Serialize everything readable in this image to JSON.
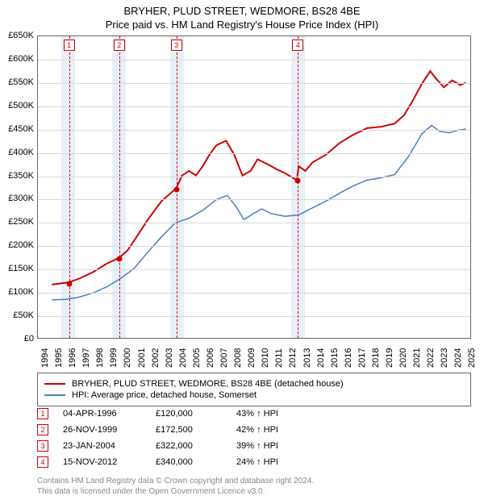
{
  "title": {
    "main": "BRYHER, PLUD STREET, WEDMORE, BS28 4BE",
    "sub": "Price paid vs. HM Land Registry's House Price Index (HPI)"
  },
  "chart": {
    "type": "line",
    "background_color": "#ffffff",
    "grid_color": "#d9d9d9",
    "border_color": "#666666",
    "highlight_band_color": "#e7f0f9",
    "dashed_line_color": "#cc0000",
    "x": {
      "min": 1994,
      "max": 2025.5,
      "ticks": [
        1994,
        1995,
        1996,
        1997,
        1998,
        1999,
        2000,
        2001,
        2002,
        2003,
        2004,
        2005,
        2006,
        2007,
        2008,
        2009,
        2010,
        2011,
        2012,
        2013,
        2014,
        2015,
        2016,
        2017,
        2018,
        2019,
        2020,
        2021,
        2022,
        2023,
        2024,
        2025
      ],
      "label_fontsize": 11
    },
    "y": {
      "min": 0,
      "max": 650000,
      "ticks": [
        0,
        50000,
        100000,
        150000,
        200000,
        250000,
        300000,
        350000,
        400000,
        450000,
        500000,
        550000,
        600000,
        650000
      ],
      "tick_labels": [
        "£0",
        "£50K",
        "£100K",
        "£150K",
        "£200K",
        "£250K",
        "£300K",
        "£350K",
        "£400K",
        "£450K",
        "£500K",
        "£550K",
        "£600K",
        "£650K"
      ],
      "label_fontsize": 11
    },
    "highlight_bands": [
      {
        "from": 1995.7,
        "to": 1996.7
      },
      {
        "from": 1999.4,
        "to": 2000.4
      },
      {
        "from": 2003.6,
        "to": 2004.6
      },
      {
        "from": 2012.4,
        "to": 2013.4
      }
    ],
    "event_markers": [
      {
        "n": "1",
        "x": 1996.26,
        "y": 120000
      },
      {
        "n": "2",
        "x": 1999.9,
        "y": 172500
      },
      {
        "n": "3",
        "x": 2004.06,
        "y": 322000
      },
      {
        "n": "4",
        "x": 2012.87,
        "y": 340000
      }
    ],
    "series": [
      {
        "name": "BRYHER, PLUD STREET, WEDMORE, BS28 4BE (detached house)",
        "color": "#cc0000",
        "line_width": 2,
        "data": [
          [
            1995.0,
            115000
          ],
          [
            1996.26,
            120000
          ],
          [
            1997.0,
            128000
          ],
          [
            1998.0,
            142000
          ],
          [
            1999.0,
            160000
          ],
          [
            1999.9,
            172500
          ],
          [
            2000.5,
            188000
          ],
          [
            2001.0,
            210000
          ],
          [
            2002.0,
            255000
          ],
          [
            2003.0,
            295000
          ],
          [
            2004.06,
            322000
          ],
          [
            2004.5,
            350000
          ],
          [
            2005.0,
            360000
          ],
          [
            2005.5,
            350000
          ],
          [
            2006.0,
            370000
          ],
          [
            2006.5,
            395000
          ],
          [
            2007.0,
            415000
          ],
          [
            2007.7,
            425000
          ],
          [
            2008.3,
            395000
          ],
          [
            2008.9,
            350000
          ],
          [
            2009.5,
            360000
          ],
          [
            2010.0,
            385000
          ],
          [
            2010.7,
            375000
          ],
          [
            2011.3,
            365000
          ],
          [
            2012.0,
            355000
          ],
          [
            2012.87,
            340000
          ],
          [
            2013.0,
            370000
          ],
          [
            2013.5,
            360000
          ],
          [
            2014.0,
            378000
          ],
          [
            2015.0,
            395000
          ],
          [
            2016.0,
            420000
          ],
          [
            2017.0,
            438000
          ],
          [
            2018.0,
            452000
          ],
          [
            2019.0,
            455000
          ],
          [
            2020.0,
            462000
          ],
          [
            2020.7,
            480000
          ],
          [
            2021.3,
            510000
          ],
          [
            2022.0,
            548000
          ],
          [
            2022.6,
            575000
          ],
          [
            2023.0,
            560000
          ],
          [
            2023.6,
            540000
          ],
          [
            2024.2,
            555000
          ],
          [
            2024.8,
            545000
          ],
          [
            2025.2,
            550000
          ]
        ]
      },
      {
        "name": "HPI: Average price, detached house, Somerset",
        "color": "#4a7fc1",
        "line_width": 1.5,
        "data": [
          [
            1995.0,
            82000
          ],
          [
            1996.0,
            83000
          ],
          [
            1997.0,
            88000
          ],
          [
            1998.0,
            97000
          ],
          [
            1999.0,
            110000
          ],
          [
            2000.0,
            128000
          ],
          [
            2001.0,
            150000
          ],
          [
            2002.0,
            185000
          ],
          [
            2003.0,
            218000
          ],
          [
            2004.0,
            248000
          ],
          [
            2005.0,
            258000
          ],
          [
            2006.0,
            275000
          ],
          [
            2007.0,
            298000
          ],
          [
            2007.8,
            307000
          ],
          [
            2008.5,
            280000
          ],
          [
            2009.0,
            255000
          ],
          [
            2009.7,
            268000
          ],
          [
            2010.3,
            278000
          ],
          [
            2011.0,
            268000
          ],
          [
            2012.0,
            262000
          ],
          [
            2013.0,
            265000
          ],
          [
            2014.0,
            280000
          ],
          [
            2015.0,
            295000
          ],
          [
            2016.0,
            312000
          ],
          [
            2017.0,
            328000
          ],
          [
            2018.0,
            340000
          ],
          [
            2019.0,
            345000
          ],
          [
            2020.0,
            352000
          ],
          [
            2021.0,
            390000
          ],
          [
            2022.0,
            440000
          ],
          [
            2022.7,
            458000
          ],
          [
            2023.3,
            445000
          ],
          [
            2024.0,
            442000
          ],
          [
            2024.7,
            448000
          ],
          [
            2025.2,
            450000
          ]
        ]
      }
    ]
  },
  "legend": {
    "items": [
      {
        "color": "#cc0000",
        "label": "BRYHER, PLUD STREET, WEDMORE, BS28 4BE (detached house)"
      },
      {
        "color": "#4a7fc1",
        "label": "HPI: Average price, detached house, Somerset"
      }
    ]
  },
  "events_table": {
    "rows": [
      {
        "n": "1",
        "date": "04-APR-1996",
        "price": "£120,000",
        "delta": "43% ↑ HPI"
      },
      {
        "n": "2",
        "date": "26-NOV-1999",
        "price": "£172,500",
        "delta": "42% ↑ HPI"
      },
      {
        "n": "3",
        "date": "23-JAN-2004",
        "price": "£322,000",
        "delta": "39% ↑ HPI"
      },
      {
        "n": "4",
        "date": "15-NOV-2012",
        "price": "£340,000",
        "delta": "24% ↑ HPI"
      }
    ]
  },
  "footer": {
    "line1": "Contains HM Land Registry data © Crown copyright and database right 2024.",
    "line2": "This data is licensed under the Open Government Licence v3.0."
  }
}
